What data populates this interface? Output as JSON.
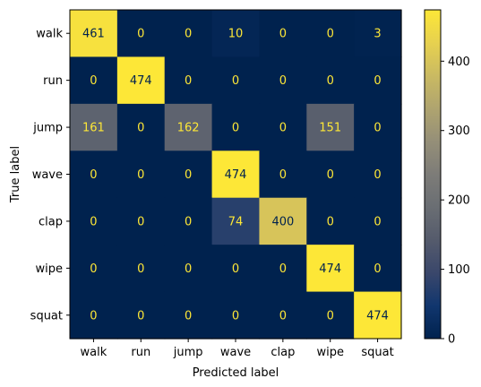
{
  "chart_data": {
    "type": "heatmap",
    "title": "",
    "xlabel": "Predicted label",
    "ylabel": "True label",
    "categories": [
      "walk",
      "run",
      "jump",
      "wave",
      "clap",
      "wipe",
      "squat"
    ],
    "matrix": [
      [
        461,
        0,
        0,
        10,
        0,
        0,
        3
      ],
      [
        0,
        474,
        0,
        0,
        0,
        0,
        0
      ],
      [
        161,
        0,
        162,
        0,
        0,
        151,
        0
      ],
      [
        0,
        0,
        0,
        474,
        0,
        0,
        0
      ],
      [
        0,
        0,
        0,
        74,
        400,
        0,
        0
      ],
      [
        0,
        0,
        0,
        0,
        0,
        474,
        0
      ],
      [
        0,
        0,
        0,
        0,
        0,
        0,
        474
      ]
    ],
    "colormap": "cividis",
    "value_range": [
      0,
      474
    ],
    "colorbar_ticks": [
      0,
      100,
      200,
      300,
      400
    ],
    "grid": false,
    "colors": {
      "low": "#00224e",
      "high": "#fde737",
      "text_on_dark": "#fde737",
      "text_on_light": "#00224e"
    }
  }
}
